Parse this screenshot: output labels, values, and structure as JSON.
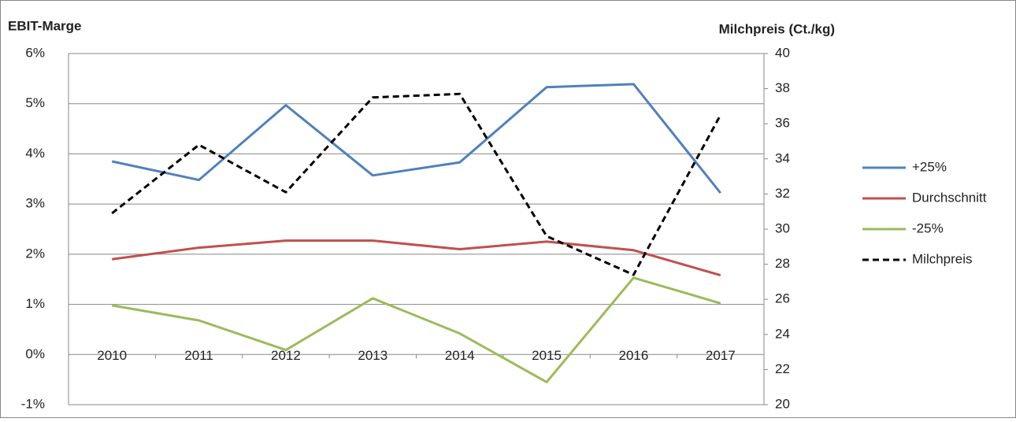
{
  "chart_data": {
    "type": "line",
    "ylabel": "EBIT-Marge",
    "y2label": "Milchpreis (Ct./kg)",
    "categories": [
      "2010",
      "2011",
      "2012",
      "2013",
      "2014",
      "2015",
      "2016",
      "2017"
    ],
    "series": [
      {
        "name": "+25%",
        "color": "#4f81bd",
        "values": [
          3.85,
          3.48,
          4.97,
          3.57,
          3.83,
          5.33,
          5.39,
          3.22
        ]
      },
      {
        "name": "Durchschnitt",
        "color": "#c0504d",
        "values": [
          1.9,
          2.13,
          2.27,
          2.27,
          2.1,
          2.25,
          2.08,
          1.58
        ]
      },
      {
        "name": "-25%",
        "color": "#9bbb59",
        "values": [
          0.98,
          0.68,
          0.09,
          1.12,
          0.42,
          -0.55,
          1.53,
          1.02
        ]
      },
      {
        "name": "Milchpreis",
        "color": "#000000",
        "dashed": true,
        "axis": "y2",
        "values": [
          30.9,
          34.8,
          32.1,
          37.5,
          37.7,
          29.6,
          27.4,
          36.5
        ]
      }
    ],
    "ylim": [
      -1,
      6
    ],
    "yticks": [
      {
        "value": -1,
        "label": "-1%"
      },
      {
        "value": 0,
        "label": "0%"
      },
      {
        "value": 1,
        "label": "1%"
      },
      {
        "value": 2,
        "label": "2%"
      },
      {
        "value": 3,
        "label": "3%"
      },
      {
        "value": 4,
        "label": "4%"
      },
      {
        "value": 5,
        "label": "5%"
      },
      {
        "value": 6,
        "label": "6%"
      }
    ],
    "y2lim": [
      20,
      40
    ],
    "y2ticks": [
      20,
      22,
      24,
      26,
      28,
      30,
      32,
      34,
      36,
      38,
      40
    ],
    "grid": true,
    "legend": "right"
  }
}
